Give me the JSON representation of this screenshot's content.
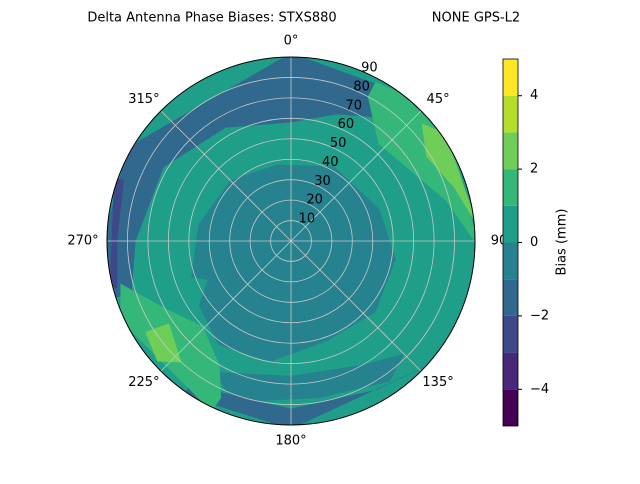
{
  "chart_data": {
    "type": "polar-contour",
    "title": "Delta Antenna Phase Biases: STXS880",
    "subtitle": "NONE GPS-L2",
    "theta_ticks": [
      "0°",
      "45°",
      "90",
      "135°",
      "180°",
      "225°",
      "270°",
      "315°"
    ],
    "rlim": [
      0,
      90
    ],
    "rticks": [
      10,
      20,
      30,
      40,
      50,
      60,
      70,
      80,
      90
    ],
    "grid": true,
    "levels": [
      -5,
      -4,
      -3,
      -2,
      -1,
      0,
      1,
      2,
      3,
      4,
      5
    ],
    "colors": [
      "#440154",
      "#482878",
      "#3e4989",
      "#31688e",
      "#26828e",
      "#1f9e89",
      "#35b779",
      "#6ece58",
      "#b5de2b",
      "#fde725"
    ],
    "colorbar_label": "Bias (mm)",
    "colorbar_ticks": [
      {
        "value": -4,
        "label": "−4"
      },
      {
        "value": -2,
        "label": "−2"
      },
      0,
      2,
      4
    ]
  }
}
